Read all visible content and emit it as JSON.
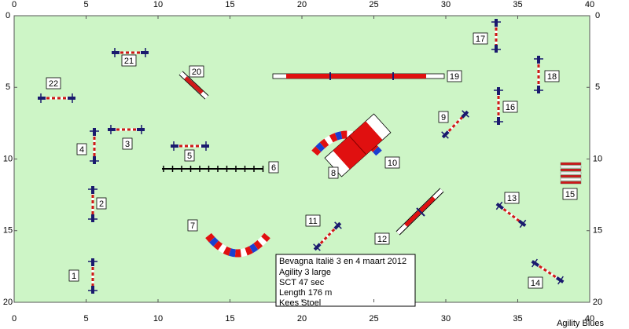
{
  "axes": {
    "x_ticks": [
      0,
      5,
      10,
      15,
      20,
      25,
      30,
      35,
      40
    ],
    "y_ticks": [
      0,
      5,
      10,
      15,
      20
    ]
  },
  "obstacles": [
    {
      "label": "1"
    },
    {
      "label": "2"
    },
    {
      "label": "3"
    },
    {
      "label": "4"
    },
    {
      "label": "5"
    },
    {
      "label": "6"
    },
    {
      "label": "7"
    },
    {
      "label": "8"
    },
    {
      "label": "9"
    },
    {
      "label": "10"
    },
    {
      "label": "11"
    },
    {
      "label": "12"
    },
    {
      "label": "13"
    },
    {
      "label": "14"
    },
    {
      "label": "15"
    },
    {
      "label": "16"
    },
    {
      "label": "17"
    },
    {
      "label": "18"
    },
    {
      "label": "19"
    },
    {
      "label": "20"
    },
    {
      "label": "21"
    },
    {
      "label": "22"
    }
  ],
  "info_box": {
    "lines": [
      "Bevagna Italië 3 en 4 maart 2012",
      "Agility 3 large",
      "SCT 47 sec",
      "Length 176 m",
      "Kees Stoel"
    ]
  },
  "footer": "Agility Blues"
}
